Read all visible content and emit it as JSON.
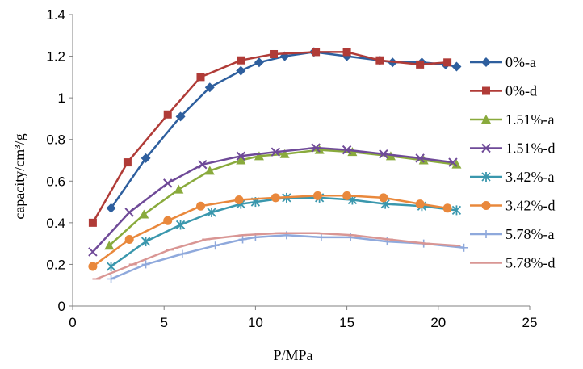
{
  "chart_data": {
    "type": "line",
    "title": "",
    "xlabel": "P/MPa",
    "ylabel": "capacity/cm³/g",
    "xlim": [
      0,
      25
    ],
    "ylim": [
      0,
      1.4
    ],
    "x_ticks": [
      0,
      5,
      10,
      15,
      20,
      25
    ],
    "y_ticks": [
      0,
      0.2,
      0.4,
      0.6,
      0.8,
      1,
      1.2,
      1.4
    ],
    "x_tick_labels": [
      "0",
      "5",
      "10",
      "15",
      "20",
      "25"
    ],
    "y_tick_labels": [
      "0",
      "0.2",
      "0.4",
      "0.6",
      "0.8",
      "1",
      "1.2",
      "1.4"
    ],
    "grid": false,
    "legend_position": "right",
    "series": [
      {
        "name": "0%-a",
        "color": "#2e5f9e",
        "marker": "diamond",
        "x": [
          2.1,
          4.0,
          5.9,
          7.5,
          9.2,
          10.2,
          11.6,
          13.2,
          15.0,
          16.8,
          17.5,
          19.1,
          20.4,
          21.0
        ],
        "y": [
          0.47,
          0.71,
          0.91,
          1.05,
          1.13,
          1.17,
          1.2,
          1.22,
          1.2,
          1.18,
          1.17,
          1.17,
          1.16,
          1.15
        ]
      },
      {
        "name": "0%-d",
        "color": "#b03b37",
        "marker": "square",
        "x": [
          1.1,
          3.0,
          5.2,
          7.0,
          9.2,
          11.0,
          13.3,
          15.0,
          16.8,
          19.0,
          20.5
        ],
        "y": [
          0.4,
          0.69,
          0.92,
          1.1,
          1.18,
          1.21,
          1.22,
          1.22,
          1.18,
          1.16,
          1.17
        ]
      },
      {
        "name": "1.51%-a",
        "color": "#89aa3c",
        "marker": "triangle",
        "x": [
          2.0,
          3.9,
          5.8,
          7.5,
          9.2,
          10.2,
          11.6,
          13.5,
          15.3,
          17.4,
          19.2,
          21.0
        ],
        "y": [
          0.29,
          0.44,
          0.56,
          0.65,
          0.7,
          0.72,
          0.73,
          0.75,
          0.74,
          0.72,
          0.7,
          0.68
        ]
      },
      {
        "name": "1.51%-d",
        "color": "#6f4a98",
        "marker": "x",
        "x": [
          1.1,
          3.1,
          5.2,
          7.1,
          9.2,
          11.1,
          13.3,
          15.0,
          17.0,
          19.0,
          20.8
        ],
        "y": [
          0.26,
          0.45,
          0.59,
          0.68,
          0.72,
          0.74,
          0.76,
          0.75,
          0.73,
          0.71,
          0.69
        ]
      },
      {
        "name": "3.42%-a",
        "color": "#3a97ad",
        "marker": "asterisk",
        "x": [
          2.1,
          4.0,
          5.9,
          7.6,
          9.2,
          10.0,
          11.7,
          13.5,
          15.3,
          17.1,
          19.1,
          21.0
        ],
        "y": [
          0.19,
          0.31,
          0.39,
          0.45,
          0.49,
          0.5,
          0.52,
          0.52,
          0.51,
          0.49,
          0.48,
          0.46
        ]
      },
      {
        "name": "3.42%-d",
        "color": "#e9883c",
        "marker": "circle",
        "x": [
          1.1,
          3.1,
          5.2,
          7.0,
          9.1,
          11.1,
          13.4,
          15.0,
          17.0,
          19.0,
          20.5
        ],
        "y": [
          0.19,
          0.32,
          0.41,
          0.48,
          0.51,
          0.52,
          0.53,
          0.53,
          0.52,
          0.49,
          0.47
        ]
      },
      {
        "name": "5.78%-a",
        "color": "#8fa9dc",
        "marker": "plus",
        "x": [
          2.1,
          4.0,
          6.0,
          7.8,
          9.3,
          10.0,
          11.7,
          13.6,
          15.2,
          17.2,
          19.2,
          21.4
        ],
        "y": [
          0.13,
          0.2,
          0.25,
          0.29,
          0.32,
          0.33,
          0.34,
          0.33,
          0.33,
          0.31,
          0.3,
          0.28
        ]
      },
      {
        "name": "5.78%-d",
        "color": "#d99694",
        "marker": "dash",
        "x": [
          1.3,
          3.3,
          5.3,
          7.3,
          9.3,
          11.3,
          13.3,
          15.3,
          17.3,
          19.3,
          21.0
        ],
        "y": [
          0.13,
          0.2,
          0.27,
          0.32,
          0.34,
          0.35,
          0.35,
          0.34,
          0.32,
          0.3,
          0.29
        ]
      }
    ]
  }
}
